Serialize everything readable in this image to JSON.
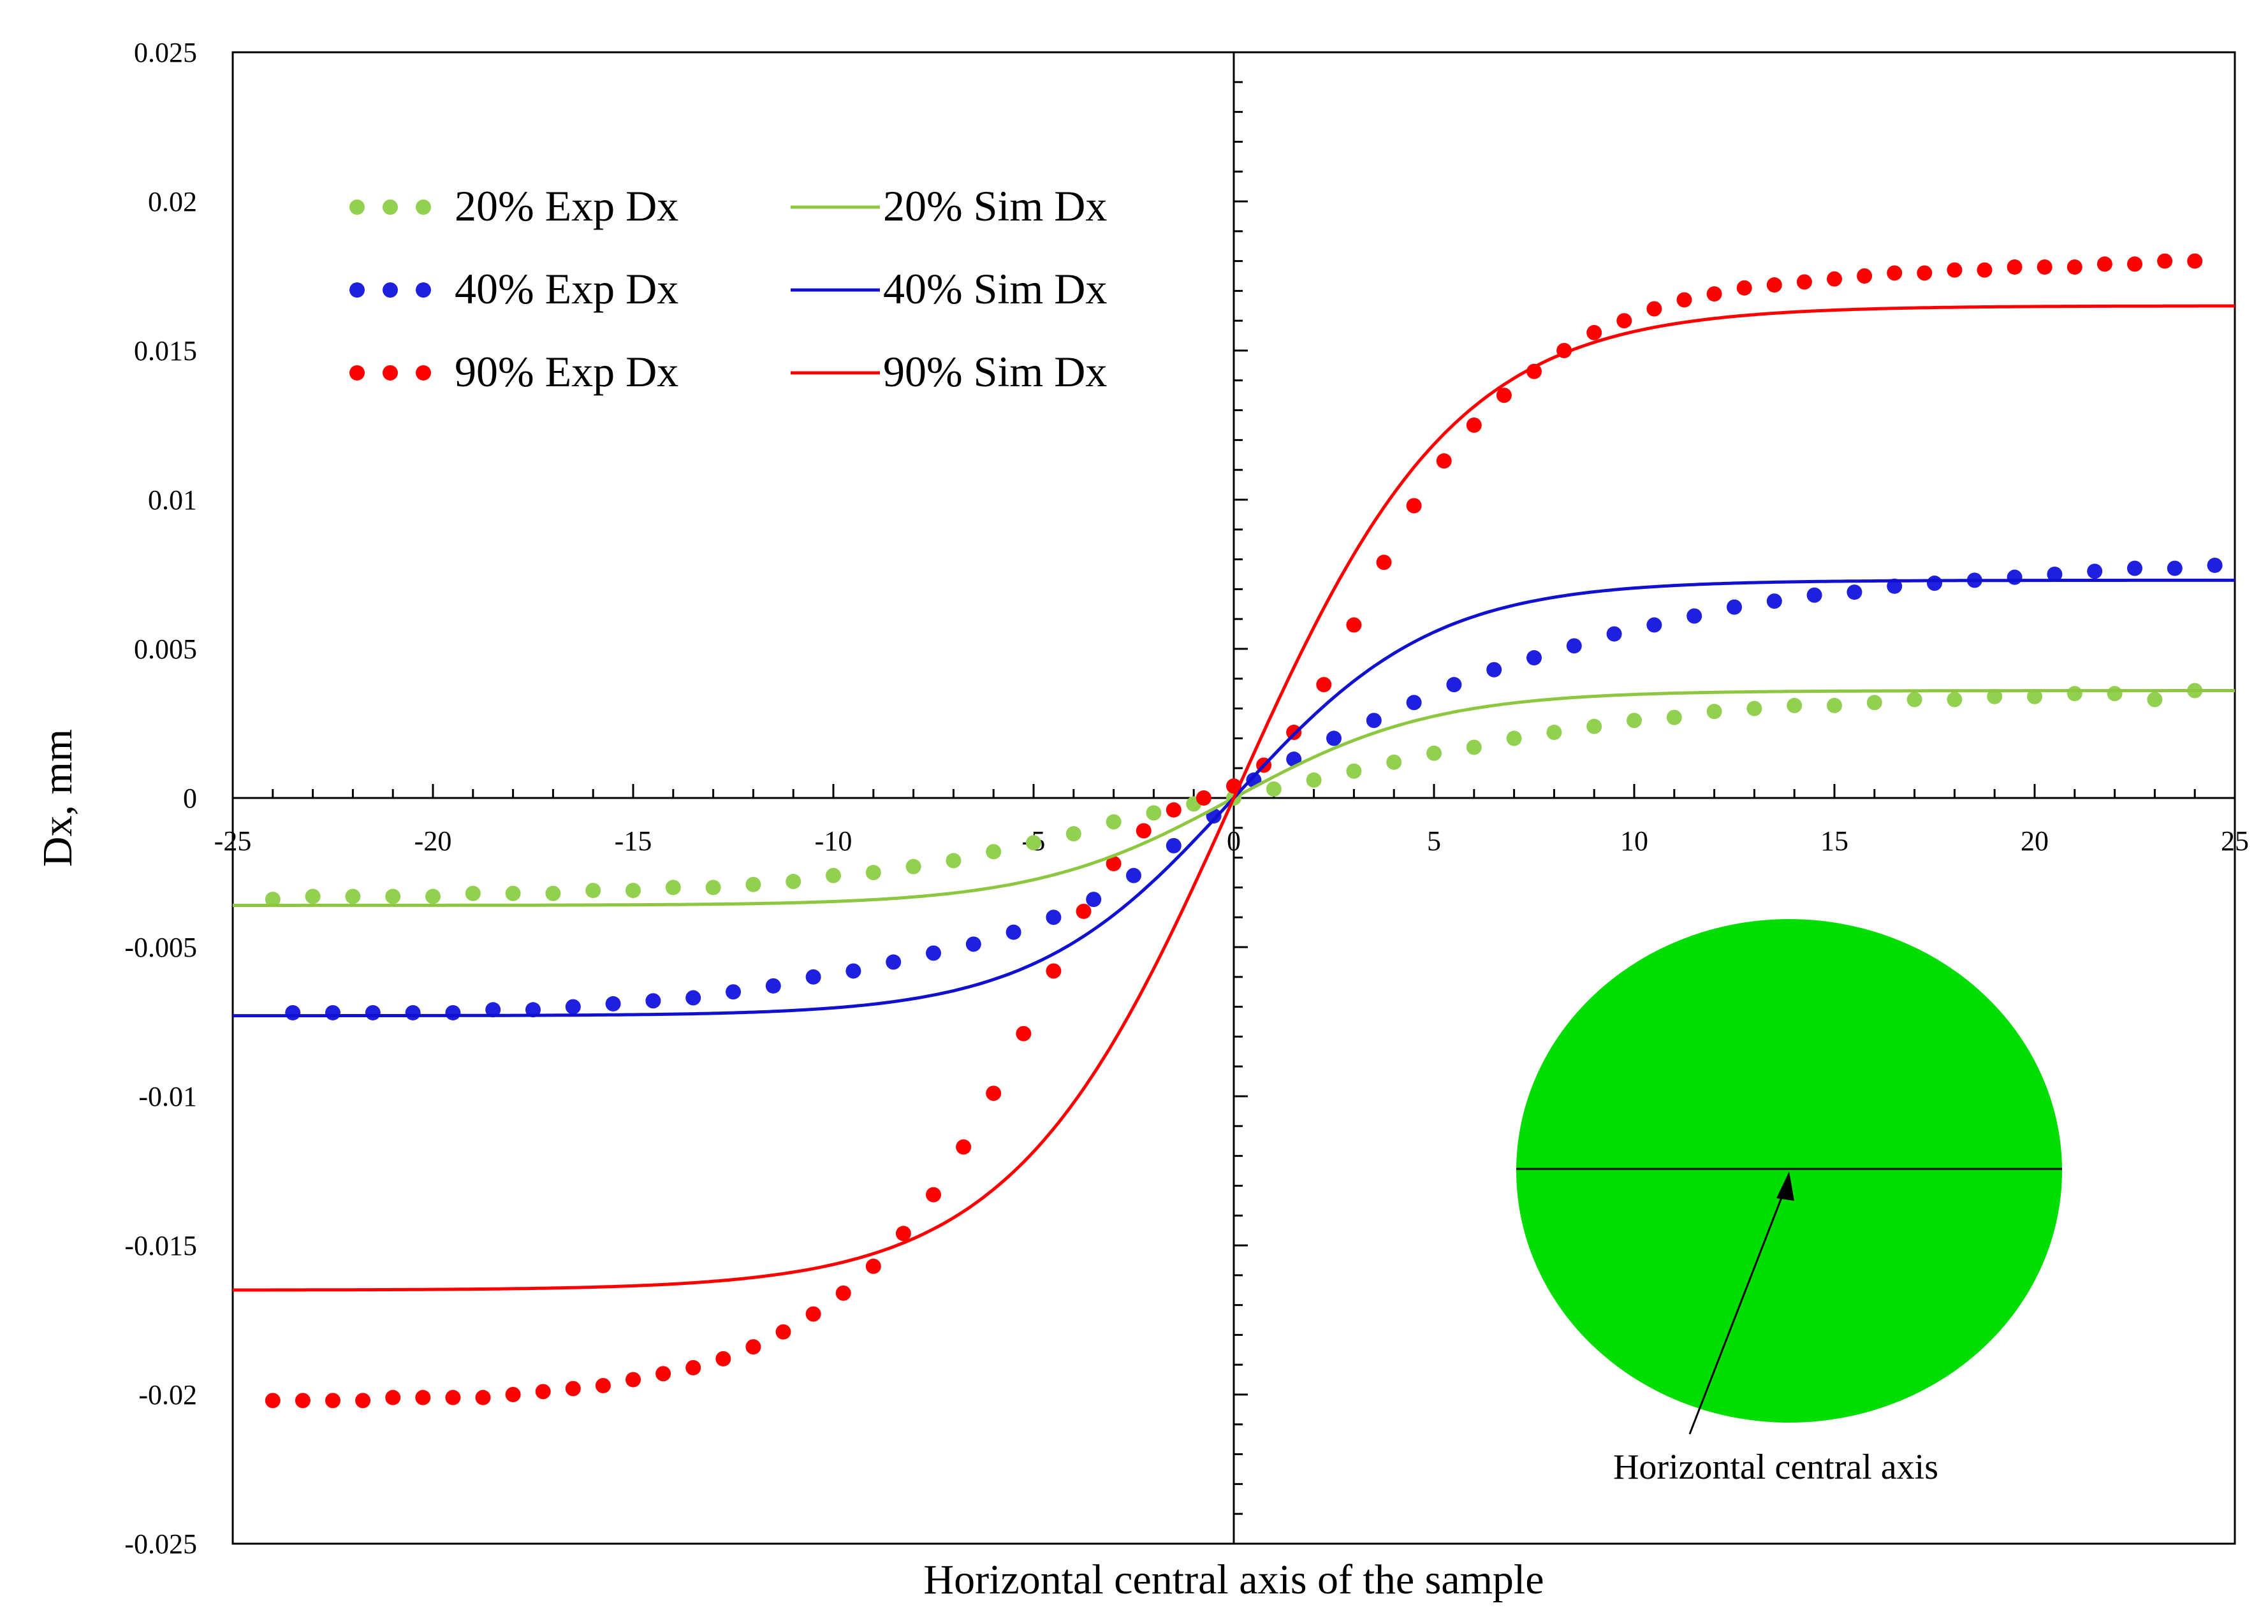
{
  "chart_data": {
    "type": "scatter",
    "title": "",
    "xlabel": "Horizontal central axis of the sample",
    "ylabel": "Dx, mm",
    "xlim": [
      -25,
      25
    ],
    "ylim": [
      -0.025,
      0.025
    ],
    "x_ticks": [
      -25,
      -20,
      -15,
      -10,
      -5,
      0,
      5,
      10,
      15,
      20,
      25
    ],
    "x_tick_labels": [
      "-25",
      "-20",
      "-15",
      "-10",
      "-5",
      "0",
      "5",
      "10",
      "15",
      "20",
      "25"
    ],
    "y_ticks": [
      0.025,
      0.02,
      0.015,
      0.01,
      0.005,
      0,
      -0.005,
      -0.01,
      -0.015,
      -0.02,
      -0.025
    ],
    "y_tick_labels": [
      "0.025",
      "0.02",
      "0.015",
      "0.01",
      "0.005",
      "0",
      "-0.005",
      "-0.01",
      "-0.015",
      "-0.02",
      "-0.025"
    ],
    "grid": false,
    "legend_position": "top-left",
    "series": [
      {
        "name": "20% Exp Dx",
        "kind": "dots",
        "color": "#92D050",
        "x": [
          -24,
          -23,
          -22,
          -21,
          -20,
          -19,
          -18,
          -17,
          -16,
          -15,
          -14,
          -13,
          -12,
          -11,
          -10,
          -9,
          -8,
          -7,
          -6,
          -5,
          -4,
          -3,
          -2,
          -1,
          0,
          1,
          2,
          3,
          4,
          5,
          6,
          7,
          8,
          9,
          10,
          11,
          12,
          13,
          14,
          15,
          16,
          17,
          18,
          19,
          20,
          21,
          22,
          23,
          24
        ],
        "y": [
          -0.0034,
          -0.0033,
          -0.0033,
          -0.0033,
          -0.0033,
          -0.0032,
          -0.0032,
          -0.0032,
          -0.0031,
          -0.0031,
          -0.003,
          -0.003,
          -0.0029,
          -0.0028,
          -0.0026,
          -0.0025,
          -0.0023,
          -0.0021,
          -0.0018,
          -0.0015,
          -0.0012,
          -0.0008,
          -0.0005,
          -0.0002,
          0.0,
          0.0003,
          0.0006,
          0.0009,
          0.0012,
          0.0015,
          0.0017,
          0.002,
          0.0022,
          0.0024,
          0.0026,
          0.0027,
          0.0029,
          0.003,
          0.0031,
          0.0031,
          0.0032,
          0.0033,
          0.0033,
          0.0034,
          0.0034,
          0.0035,
          0.0035,
          0.0033,
          0.0036
        ]
      },
      {
        "name": "40% Exp Dx",
        "kind": "dots",
        "color": "#1F1FE0",
        "x": [
          -23.5,
          -22.5,
          -21.5,
          -20.5,
          -19.5,
          -18.5,
          -17.5,
          -16.5,
          -15.5,
          -14.5,
          -13.5,
          -12.5,
          -11.5,
          -10.5,
          -9.5,
          -8.5,
          -7.5,
          -6.5,
          -5.5,
          -4.5,
          -3.5,
          -2.5,
          -1.5,
          -0.5,
          0.5,
          1.5,
          2.5,
          3.5,
          4.5,
          5.5,
          6.5,
          7.5,
          8.5,
          9.5,
          10.5,
          11.5,
          12.5,
          13.5,
          14.5,
          15.5,
          16.5,
          17.5,
          18.5,
          19.5,
          20.5,
          21.5,
          22.5,
          23.5,
          24.5
        ],
        "y": [
          -0.0072,
          -0.0072,
          -0.0072,
          -0.0072,
          -0.0072,
          -0.0071,
          -0.0071,
          -0.007,
          -0.0069,
          -0.0068,
          -0.0067,
          -0.0065,
          -0.0063,
          -0.006,
          -0.0058,
          -0.0055,
          -0.0052,
          -0.0049,
          -0.0045,
          -0.004,
          -0.0034,
          -0.0026,
          -0.0016,
          -0.0006,
          0.0006,
          0.0013,
          0.002,
          0.0026,
          0.0032,
          0.0038,
          0.0043,
          0.0047,
          0.0051,
          0.0055,
          0.0058,
          0.0061,
          0.0064,
          0.0066,
          0.0068,
          0.0069,
          0.0071,
          0.0072,
          0.0073,
          0.0074,
          0.0075,
          0.0076,
          0.0077,
          0.0077,
          0.0078
        ]
      },
      {
        "name": "90% Exp Dx",
        "kind": "dots",
        "color": "#FF0000",
        "x": [
          -24,
          -23.25,
          -22.5,
          -21.75,
          -21,
          -20.25,
          -19.5,
          -18.75,
          -18,
          -17.25,
          -16.5,
          -15.75,
          -15,
          -14.25,
          -13.5,
          -12.75,
          -12,
          -11.25,
          -10.5,
          -9.75,
          -9,
          -8.25,
          -7.5,
          -6.75,
          -6,
          -5.25,
          -4.5,
          -3.75,
          -3,
          -2.25,
          -1.5,
          -0.75,
          0,
          0.75,
          1.5,
          2.25,
          3,
          3.75,
          4.5,
          5.25,
          6,
          6.75,
          7.5,
          8.25,
          9,
          9.75,
          10.5,
          11.25,
          12,
          12.75,
          13.5,
          14.25,
          15,
          15.75,
          16.5,
          17.25,
          18,
          18.75,
          19.5,
          20.25,
          21,
          21.75,
          22.5,
          23.25,
          24
        ],
        "y": [
          -0.0202,
          -0.0202,
          -0.0202,
          -0.0202,
          -0.0201,
          -0.0201,
          -0.0201,
          -0.0201,
          -0.02,
          -0.0199,
          -0.0198,
          -0.0197,
          -0.0195,
          -0.0193,
          -0.0191,
          -0.0188,
          -0.0184,
          -0.0179,
          -0.0173,
          -0.0166,
          -0.0157,
          -0.0146,
          -0.0133,
          -0.0117,
          -0.0099,
          -0.0079,
          -0.0058,
          -0.0038,
          -0.0022,
          -0.0011,
          -0.0004,
          0.0,
          0.0004,
          0.0011,
          0.0022,
          0.0038,
          0.0058,
          0.0079,
          0.0098,
          0.0113,
          0.0125,
          0.0135,
          0.0143,
          0.015,
          0.0156,
          0.016,
          0.0164,
          0.0167,
          0.0169,
          0.0171,
          0.0172,
          0.0173,
          0.0174,
          0.0175,
          0.0176,
          0.0176,
          0.0177,
          0.0177,
          0.0178,
          0.0178,
          0.0178,
          0.0179,
          0.0179,
          0.018,
          0.018
        ]
      },
      {
        "name": "20% Sim Dx",
        "kind": "line",
        "color": "#8DC63F",
        "amplitude": 0.0036,
        "shape": "tanh",
        "scale": 9.5
      },
      {
        "name": "40% Sim Dx",
        "kind": "line",
        "color": "#1010D0",
        "amplitude": 0.0073,
        "shape": "tanh",
        "scale": 9.5
      },
      {
        "name": "90% Sim Dx",
        "kind": "line",
        "color": "#FF0000",
        "amplitude": 0.0165,
        "shape": "tanh",
        "scale": 10.5
      }
    ],
    "inset": {
      "label": "Horizontal central axis",
      "fill_color": "#00DD00"
    }
  }
}
